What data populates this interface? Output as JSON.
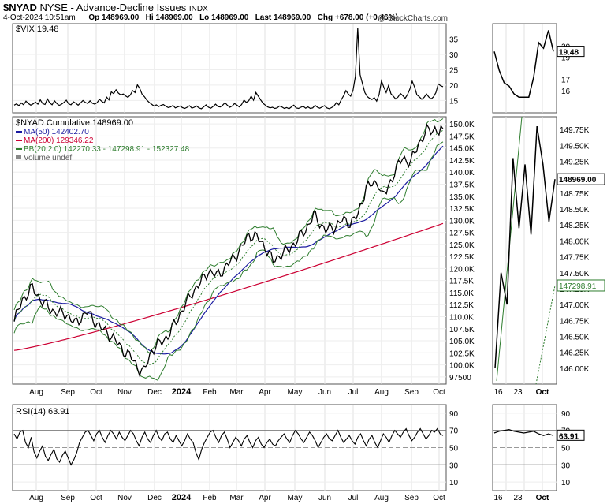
{
  "header": {
    "symbol": "$NYAD",
    "name": "NYSE - Advance-Decline Issues",
    "exchange": "INDX",
    "date": "4-Oct-2024 10:51am",
    "open": "Op 148969.00",
    "high": "Hi 148969.00",
    "low": "Lo 148969.00",
    "last": "Last 148969.00",
    "change": "Chg +678.00 (+0.46%)",
    "watermark": "@ StockCharts.com"
  },
  "chart_data": [
    {
      "type": "line",
      "panel": "vix",
      "legend": "$VIX 19.48",
      "last_label": "19.48",
      "ylim": [
        11,
        40
      ],
      "y_ticks": [
        15,
        20,
        25,
        30,
        35
      ],
      "zoom_ticks": [
        16,
        17,
        19,
        20
      ],
      "x_labels": [
        "Aug",
        "Sep",
        "Oct",
        "Nov",
        "Dec",
        "2024",
        "Feb",
        "Mar",
        "Apr",
        "May",
        "Jun",
        "Jul",
        "Aug",
        "Sep",
        "Oct"
      ],
      "values": [
        13.5,
        13.9,
        13.3,
        14.2,
        13.6,
        14.8,
        14.0,
        13.5,
        13.9,
        14.5,
        13.8,
        15.2,
        14.0,
        13.7,
        15.5,
        14.2,
        13.6,
        14.9,
        14.0,
        13.4,
        13.8,
        14.4,
        15.1,
        13.9,
        13.6,
        14.6,
        14.1,
        13.5,
        14.2,
        15.0,
        14.4,
        14.0,
        14.9,
        14.1,
        13.8,
        14.3,
        15.4,
        14.7,
        14.2,
        16.1,
        15.2,
        17.8,
        17.2,
        18.5,
        17.4,
        16.8,
        17.1,
        16.5,
        16.0,
        16.8,
        18.2,
        17.6,
        20.1,
        18.9,
        17.0,
        16.2,
        15.1,
        14.4,
        13.8,
        13.2,
        13.6,
        13.0,
        13.4,
        13.7,
        13.1,
        12.7,
        12.9,
        13.4,
        12.6,
        12.9,
        13.2,
        12.7,
        12.4,
        12.8,
        13.3,
        12.5,
        12.8,
        13.2,
        12.6,
        12.3,
        12.9,
        13.6,
        12.8,
        12.5,
        13.1,
        13.8,
        13.0,
        12.9,
        13.5,
        14.3,
        13.4,
        12.8,
        13.2,
        14.0,
        13.5,
        12.9,
        13.7,
        15.1,
        14.4,
        14.9,
        16.4,
        15.1,
        17.6,
        16.4,
        15.2,
        14.1,
        13.5,
        12.9,
        12.6,
        12.8,
        12.4,
        12.6,
        13.2,
        12.9,
        12.4,
        12.7,
        12.3,
        12.9,
        13.5,
        12.6,
        12.4,
        12.8,
        13.1,
        12.5,
        12.9,
        12.4,
        12.6,
        13.4,
        12.8,
        12.5,
        12.9,
        13.3,
        12.6,
        12.3,
        12.7,
        13.2,
        14.3,
        13.6,
        15.2,
        16.5,
        18.2,
        17.1,
        16.4,
        18.3,
        22.8,
        38.6,
        23.4,
        20.5,
        17.6,
        16.3,
        15.7,
        15.3,
        15.9,
        14.8,
        16.9,
        21.4,
        19.3,
        17.6,
        19.9,
        17.2,
        16.4,
        15.5,
        16.1,
        17.3,
        16.6,
        15.7,
        16.9,
        18.7,
        21.3,
        19.4,
        16.8,
        16.2,
        15.4,
        16.0,
        17.1,
        16.1,
        15.5,
        16.2,
        17.6,
        20.4,
        19.8,
        19.5
      ],
      "zoom_values": [
        19.5,
        17.8,
        16.7,
        16.4,
        15.7,
        15.4,
        15.4,
        15.4,
        17.2,
        20.3,
        19.8,
        21.4,
        19.5
      ]
    },
    {
      "type": "line",
      "panel": "price",
      "legend": {
        "main": "$NYAD Cumulative 148969.00",
        "ma50": "MA(50) 142402.70",
        "ma200": "MA(200) 129346.22",
        "bb": "BB(20,2.0) 142270.33 - 147298.91 - 152327.48",
        "volume": "Volume undef"
      },
      "ylim": [
        96000,
        151500
      ],
      "y_ticks": [
        "97500",
        "100.0K",
        "102.5K",
        "105.0K",
        "107.5K",
        "110.0K",
        "112.5K",
        "115.0K",
        "117.5K",
        "120.0K",
        "122.5K",
        "125.0K",
        "127.5K",
        "130.0K",
        "132.5K",
        "135.0K",
        "137.5K",
        "140.0K",
        "142.5K",
        "145.0K",
        "147.5K",
        "150.0K"
      ],
      "y_tick_values": [
        97500,
        100000,
        102500,
        105000,
        107500,
        110000,
        112500,
        115000,
        117500,
        120000,
        122500,
        125000,
        127500,
        130000,
        132500,
        135000,
        137500,
        140000,
        142500,
        145000,
        147500,
        150000
      ],
      "zoom_ylim": [
        145750,
        149950
      ],
      "zoom_ticks": [
        "146.00K",
        "146.25K",
        "146.50K",
        "146.75K",
        "147.00K",
        "147.25K",
        "147.50K",
        "147.75K",
        "148.00K",
        "148.25K",
        "148.50K",
        "148.75K",
        "149.00K",
        "149.25K",
        "149.50K",
        "149.75K"
      ],
      "zoom_tick_values": [
        146000,
        146250,
        146500,
        146750,
        147000,
        147250,
        147500,
        147750,
        148000,
        148250,
        148500,
        148750,
        149000,
        149250,
        149500,
        149750
      ],
      "last_label": "148969.00",
      "bb_mid_label": "147298.91",
      "x_labels": [
        "Aug",
        "Sep",
        "Oct",
        "Nov",
        "Dec",
        "2024",
        "Feb",
        "Mar",
        "Apr",
        "May",
        "Jun",
        "Jul",
        "Aug",
        "Sep",
        "Oct"
      ],
      "zoom_x_labels": [
        "16",
        "23",
        "Oct"
      ],
      "key_points": [
        [
          0,
          109000
        ],
        [
          4,
          113500
        ],
        [
          9,
          116000
        ],
        [
          14,
          113000
        ],
        [
          20,
          111000
        ],
        [
          26,
          110500
        ],
        [
          30,
          108500
        ],
        [
          36,
          111000
        ],
        [
          42,
          108000
        ],
        [
          48,
          106000
        ],
        [
          54,
          103000
        ],
        [
          58,
          101500
        ],
        [
          62,
          99000
        ],
        [
          64,
          98500
        ],
        [
          68,
          103000
        ],
        [
          72,
          104500
        ],
        [
          76,
          106000
        ],
        [
          80,
          109000
        ],
        [
          84,
          112000
        ],
        [
          88,
          115000
        ],
        [
          92,
          117000
        ],
        [
          96,
          119500
        ],
        [
          100,
          118500
        ],
        [
          104,
          120000
        ],
        [
          108,
          122000
        ],
        [
          112,
          124000
        ],
        [
          116,
          127000
        ],
        [
          120,
          126500
        ],
        [
          124,
          124500
        ],
        [
          126,
          123000
        ],
        [
          128,
          121500
        ],
        [
          132,
          123000
        ],
        [
          136,
          124000
        ],
        [
          140,
          126000
        ],
        [
          144,
          128000
        ],
        [
          148,
          131000
        ],
        [
          150,
          130000
        ],
        [
          154,
          128000
        ],
        [
          158,
          128500
        ],
        [
          162,
          130000
        ],
        [
          166,
          129500
        ],
        [
          170,
          131000
        ],
        [
          174,
          137000
        ],
        [
          178,
          137500
        ],
        [
          180,
          138000
        ],
        [
          182,
          135000
        ],
        [
          184,
          136000
        ],
        [
          188,
          140000
        ],
        [
          192,
          143000
        ],
        [
          196,
          142000
        ],
        [
          200,
          146000
        ],
        [
          204,
          148500
        ],
        [
          208,
          149000
        ],
        [
          210,
          148300
        ],
        [
          212,
          148969
        ]
      ],
      "zoom_points": [
        146000,
        147500,
        147000,
        149300,
        148200,
        149200,
        148100,
        149800,
        149200,
        148300,
        148969
      ],
      "zoom_bb_lower": [
        145900,
        149950
      ],
      "zoom_bb_middle": [
        145800,
        147298.91
      ]
    },
    {
      "type": "line",
      "panel": "rsi",
      "legend": "RSI(14) 63.91",
      "last_label": "63.91",
      "ylim": [
        0,
        100
      ],
      "y_ticks": [
        10,
        30,
        50,
        70,
        90
      ],
      "x_labels": [
        "Aug",
        "Sep",
        "Oct",
        "Nov",
        "Dec",
        "2024",
        "Feb",
        "Mar",
        "Apr",
        "May",
        "Jun",
        "Jul",
        "Aug",
        "Sep",
        "Oct"
      ],
      "zoom_x_labels": [
        "16",
        "23",
        "Oct"
      ],
      "values": [
        66,
        60,
        68,
        70,
        56,
        50,
        62,
        45,
        38,
        46,
        52,
        40,
        35,
        42,
        48,
        37,
        33,
        41,
        46,
        38,
        30,
        36,
        44,
        56,
        62,
        68,
        70,
        64,
        58,
        66,
        70,
        62,
        56,
        64,
        70,
        66,
        60,
        68,
        62,
        58,
        64,
        70,
        66,
        58,
        52,
        62,
        68,
        60,
        56,
        64,
        70,
        62,
        58,
        66,
        68,
        60,
        56,
        64,
        58,
        52,
        58,
        66,
        60,
        56,
        44,
        36,
        48,
        56,
        62,
        68,
        70,
        62,
        56,
        64,
        68,
        60,
        50,
        56,
        62,
        58,
        52,
        60,
        64,
        56,
        50,
        58,
        62,
        54,
        50,
        56,
        60,
        54,
        52,
        58,
        62,
        66,
        60,
        56,
        64,
        70,
        66,
        60,
        56,
        62,
        68,
        64,
        58,
        50,
        56,
        62,
        66,
        60,
        58,
        64,
        70,
        62,
        56,
        60,
        64,
        58,
        54,
        62,
        66,
        58,
        52,
        60,
        64,
        56,
        50,
        58,
        66,
        62,
        56,
        64,
        70,
        66,
        62,
        68,
        72,
        64,
        58,
        62,
        68,
        72,
        66,
        60,
        64,
        70,
        68,
        72,
        66,
        63.91
      ],
      "zoom_values": [
        67,
        69,
        70,
        71,
        69,
        68,
        67,
        68,
        69,
        66,
        64,
        66,
        63.91
      ]
    }
  ]
}
